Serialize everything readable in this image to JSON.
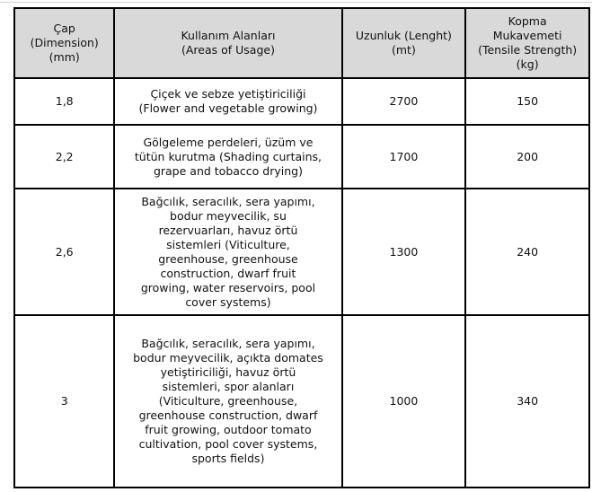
{
  "header": {
    "dimension": "Çap\n(Dimension)\n(mm)",
    "usage": "Kullanım Alanları\n(Areas of Usage)",
    "length": "Uzunluk (Lenght)\n(mt)",
    "strength": "Kopma\nMukavemeti\n(Tensile Strength)\n(kg)"
  },
  "header_bg": "#d9d9d9",
  "rows": [
    {
      "dimension": "1,8",
      "usage": "Çiçek ve sebze yetiştiriciliği\n(Flower and vegetable growing)",
      "length": "2700",
      "strength": "150"
    },
    {
      "dimension": "2,2",
      "usage": "Gölgeleme perdeleri, üzüm ve\ntütün kurutma (Shading curtains,\ngrape and tobacco drying)",
      "length": "1700",
      "strength": "200"
    },
    {
      "dimension": "2,6",
      "usage": "Bağcılık, seracılık, sera yapımı,\nbodur meyvecilik, su\nrezervuarları, havuz örtü\nsistemleri (Viticulture,\ngreenhouse, greenhouse\nconstruction, dwarf fruit\ngrowing, water reservoirs, pool\ncover systems)",
      "length": "1300",
      "strength": "240"
    },
    {
      "dimension": "3",
      "usage": "Bağcılık, seracılık, sera yapımı,\nbodur meyvecilik, açıkta domates\nyetiştiriciliği, havuz örtü\nsistemleri, spor alanları\n(Viticulture, greenhouse,\ngreenhouse construction, dwarf\nfruit growing, outdoor tomato\ncultivation, pool cover systems,\nsports fields)",
      "length": "1000",
      "strength": "340"
    }
  ]
}
